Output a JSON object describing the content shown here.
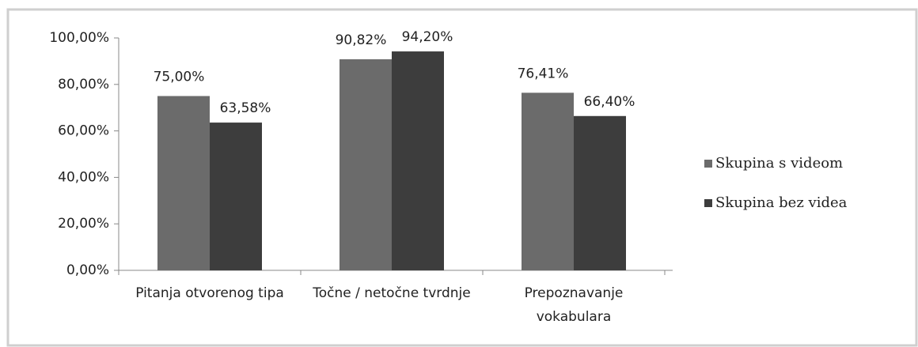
{
  "chart_data": {
    "type": "bar",
    "categories": [
      "Pitanja otvorenog tipa",
      "Točne / netočne tvrdnje",
      "Prepoznavanje vokabulara"
    ],
    "series": [
      {
        "name": "Skupina s videom",
        "color": "#6b6b6b",
        "values": [
          75.0,
          90.82,
          76.41
        ],
        "value_labels": [
          "75,00%",
          "90,82%",
          "76,41%"
        ]
      },
      {
        "name": "Skupina bez videa",
        "color": "#3d3d3d",
        "values": [
          63.58,
          94.2,
          66.4
        ],
        "value_labels": [
          "63,58%",
          "94,20%",
          "66,40%"
        ]
      }
    ],
    "ylim": [
      0,
      100
    ],
    "yticks": [
      {
        "value": 0,
        "label": "0,00%"
      },
      {
        "value": 20,
        "label": "20,00%"
      },
      {
        "value": 40,
        "label": "40,00%"
      },
      {
        "value": 60,
        "label": "60,00%"
      },
      {
        "value": 80,
        "label": "80,00%"
      },
      {
        "value": 100,
        "label": "100,00%"
      }
    ],
    "legend": "right"
  }
}
